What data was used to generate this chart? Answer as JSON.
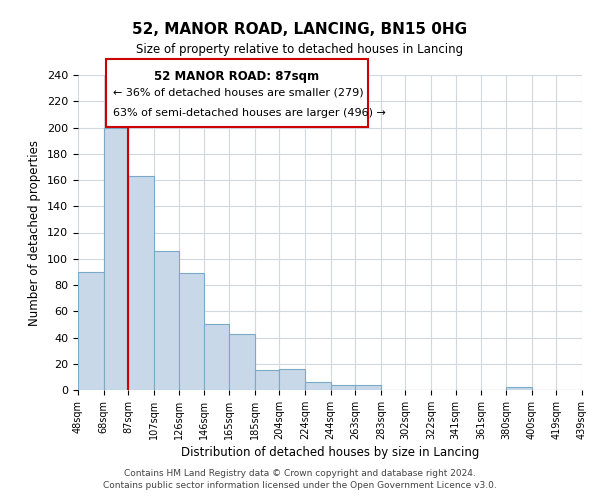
{
  "title": "52, MANOR ROAD, LANCING, BN15 0HG",
  "subtitle": "Size of property relative to detached houses in Lancing",
  "xlabel": "Distribution of detached houses by size in Lancing",
  "ylabel": "Number of detached properties",
  "footer_line1": "Contains HM Land Registry data © Crown copyright and database right 2024.",
  "footer_line2": "Contains public sector information licensed under the Open Government Licence v3.0.",
  "annotation_title": "52 MANOR ROAD: 87sqm",
  "annotation_line1": "← 36% of detached houses are smaller (279)",
  "annotation_line2": "63% of semi-detached houses are larger (496) →",
  "property_size": 87,
  "bar_edges": [
    48,
    68,
    87,
    107,
    126,
    146,
    165,
    185,
    204,
    224,
    244,
    263,
    283,
    302,
    322,
    341,
    361,
    380,
    400,
    419,
    439
  ],
  "bar_heights": [
    90,
    200,
    163,
    106,
    89,
    50,
    43,
    15,
    16,
    6,
    4,
    4,
    0,
    0,
    0,
    0,
    0,
    2,
    0,
    0,
    1
  ],
  "bar_color": "#c8d8e8",
  "bar_edgecolor": "#7aaac8",
  "highlight_edge_color": "#cc0000",
  "grid_color": "#d0d8e0",
  "ylim": [
    0,
    240
  ],
  "yticks": [
    0,
    20,
    40,
    60,
    80,
    100,
    120,
    140,
    160,
    180,
    200,
    220,
    240
  ],
  "tick_labels": [
    "48sqm",
    "68sqm",
    "87sqm",
    "107sqm",
    "126sqm",
    "146sqm",
    "165sqm",
    "185sqm",
    "204sqm",
    "224sqm",
    "244sqm",
    "263sqm",
    "283sqm",
    "302sqm",
    "322sqm",
    "341sqm",
    "361sqm",
    "380sqm",
    "400sqm",
    "419sqm",
    "439sqm"
  ]
}
